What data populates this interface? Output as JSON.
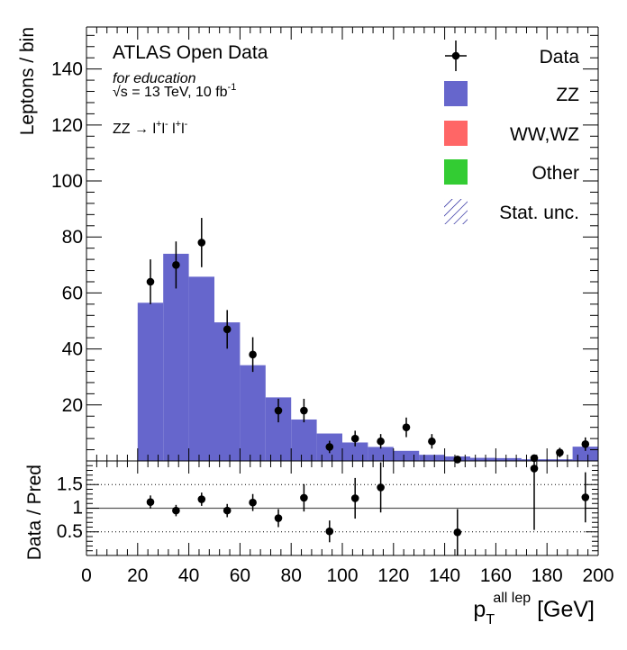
{
  "labels": {
    "atlas": "ATLAS Open Data",
    "education": "for education",
    "energy": "√s = 13 TeV, 10 fb",
    "energy_sup": "-1",
    "process_prefix": "ZZ → l",
    "process_sup1": "+",
    "process_mid1": "l",
    "process_sup2": "-",
    "process_mid2": " l",
    "process_sup3": "+",
    "process_mid3": "l",
    "process_sup4": "-",
    "ylabel_main": "Leptons / bin",
    "ylabel_ratio": "Data / Pred",
    "xlabel_main": "p",
    "xlabel_sub": "T",
    "xlabel_sup": "all lep",
    "xlabel_unit": " [GeV]"
  },
  "legend": [
    {
      "name": "Data",
      "symbol": "marker"
    },
    {
      "name": "ZZ",
      "symbol": "fill",
      "color": "#6666cc"
    },
    {
      "name": "WW,WZ",
      "symbol": "fill",
      "color": "#ff6666"
    },
    {
      "name": "Other",
      "symbol": "fill",
      "color": "#33cc33"
    },
    {
      "name": "Stat. unc.",
      "symbol": "hatch",
      "color": "#00008b"
    }
  ],
  "chart_data": [
    {
      "type": "bar",
      "title": "",
      "ylabel": "Leptons / bin",
      "xlim": [
        0,
        200
      ],
      "ylim": [
        0,
        155
      ],
      "x_ticks": [
        0,
        20,
        40,
        60,
        80,
        100,
        120,
        140,
        160,
        180,
        200
      ],
      "y_ticks": [
        20,
        40,
        60,
        80,
        100,
        120,
        140
      ],
      "bin_edges": [
        20,
        30,
        40,
        50,
        60,
        70,
        80,
        90,
        100,
        110,
        120,
        130,
        140,
        150,
        160,
        170,
        180,
        190,
        200
      ],
      "series": [
        {
          "name": "ZZ",
          "type": "histogram",
          "color": "#6666cc",
          "values": [
            56.5,
            74,
            65.8,
            49.5,
            34.2,
            22.7,
            14.8,
            9.8,
            6.6,
            5,
            3.6,
            2.2,
            1.6,
            1.1,
            1.0,
            0.6,
            0.6,
            5.1
          ]
        },
        {
          "name": "Data",
          "type": "errorbar",
          "x": [
            25,
            35,
            45,
            55,
            65,
            75,
            85,
            95,
            105,
            115,
            125,
            135,
            145,
            175,
            185,
            195
          ],
          "values": [
            64,
            70,
            78,
            47,
            38,
            18,
            18,
            5,
            8,
            7,
            12,
            7,
            0.5,
            1,
            3,
            6
          ],
          "errors": [
            8,
            8.4,
            8.8,
            6.9,
            6.2,
            4.2,
            4.2,
            2.2,
            2.8,
            2.6,
            3.5,
            2.6,
            1,
            1,
            1.7,
            2.4
          ]
        }
      ]
    },
    {
      "type": "scatter",
      "title": "",
      "ylabel": "Data / Pred",
      "xlabel": "p_T^{all lep} [GeV]",
      "xlim": [
        0,
        200
      ],
      "ylim": [
        0,
        2
      ],
      "x_ticks": [
        0,
        20,
        40,
        60,
        80,
        100,
        120,
        140,
        160,
        180,
        200
      ],
      "y_ticks": [
        0.5,
        1,
        1.5
      ],
      "reference_lines": [
        0.5,
        1,
        1.5
      ],
      "series": [
        {
          "name": "Data / Pred",
          "x": [
            25,
            35,
            45,
            55,
            65,
            75,
            85,
            95,
            105,
            115,
            145,
            175,
            195
          ],
          "values": [
            1.13,
            0.95,
            1.19,
            0.95,
            1.12,
            0.79,
            1.22,
            0.51,
            1.21,
            1.44,
            0.49,
            1.84,
            1.23
          ],
          "errors_low": [
            0.14,
            0.12,
            0.14,
            0.14,
            0.18,
            0.19,
            0.29,
            0.23,
            0.43,
            0.53,
            0.49,
            1.3,
            0.53
          ],
          "errors_high": [
            0.14,
            0.12,
            0.14,
            0.14,
            0.18,
            0.19,
            0.29,
            0.23,
            0.43,
            0.53,
            0.49,
            0.4,
            0.53
          ]
        }
      ]
    }
  ]
}
